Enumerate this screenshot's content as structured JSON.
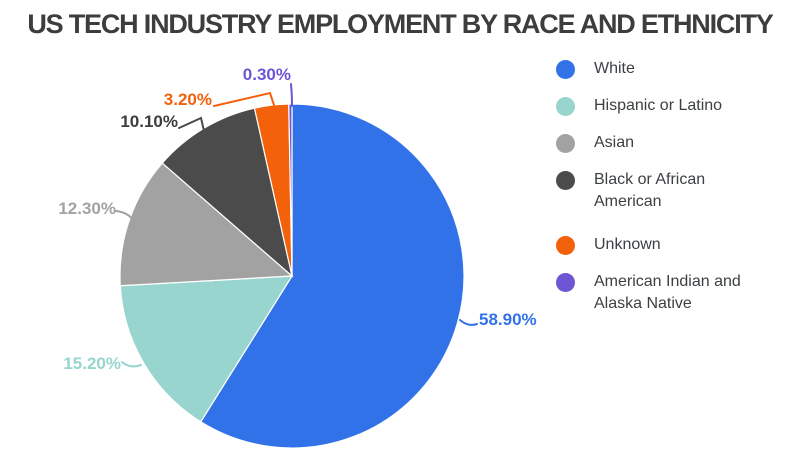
{
  "chart_data": {
    "type": "pie",
    "title": "US TECH INDUSTRY EMPLOYMENT BY RACE AND ETHNICITY",
    "categories": [
      "White",
      "Hispanic or Latino",
      "Asian",
      "Black or African American",
      "Unknown",
      "American Indian and Alaska Native"
    ],
    "values": [
      58.9,
      15.2,
      12.3,
      10.1,
      3.2,
      0.3
    ],
    "value_labels": [
      "58.90%",
      "15.20%",
      "12.30%",
      "10.10%",
      "3.20%",
      "0.30%"
    ],
    "colors": [
      "#3272e8",
      "#97d5ce",
      "#a2a2a2",
      "#4b4b4b",
      "#f4610b",
      "#6d55d3"
    ],
    "label_colors": [
      "#3272e8",
      "#97d5ce",
      "#a2a2a2",
      "#3d3d3d",
      "#f4610b",
      "#6d55d3"
    ],
    "start_angle_deg": 0,
    "direction": "clockwise",
    "legend_position": "right",
    "background_color": "#ffffff",
    "slice_border_color": "#ffffff"
  }
}
